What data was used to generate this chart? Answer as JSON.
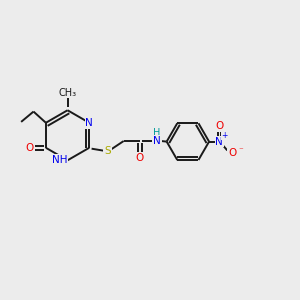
{
  "background_color": "#ececec",
  "bond_color": "#1a1a1a",
  "N_color": "#0000ee",
  "S_color": "#aaaa00",
  "O_color": "#ee0000",
  "NH_color": "#009999",
  "figsize": [
    3.0,
    3.0
  ],
  "dpi": 100,
  "xlim": [
    0,
    10
  ],
  "ylim": [
    0,
    10
  ]
}
